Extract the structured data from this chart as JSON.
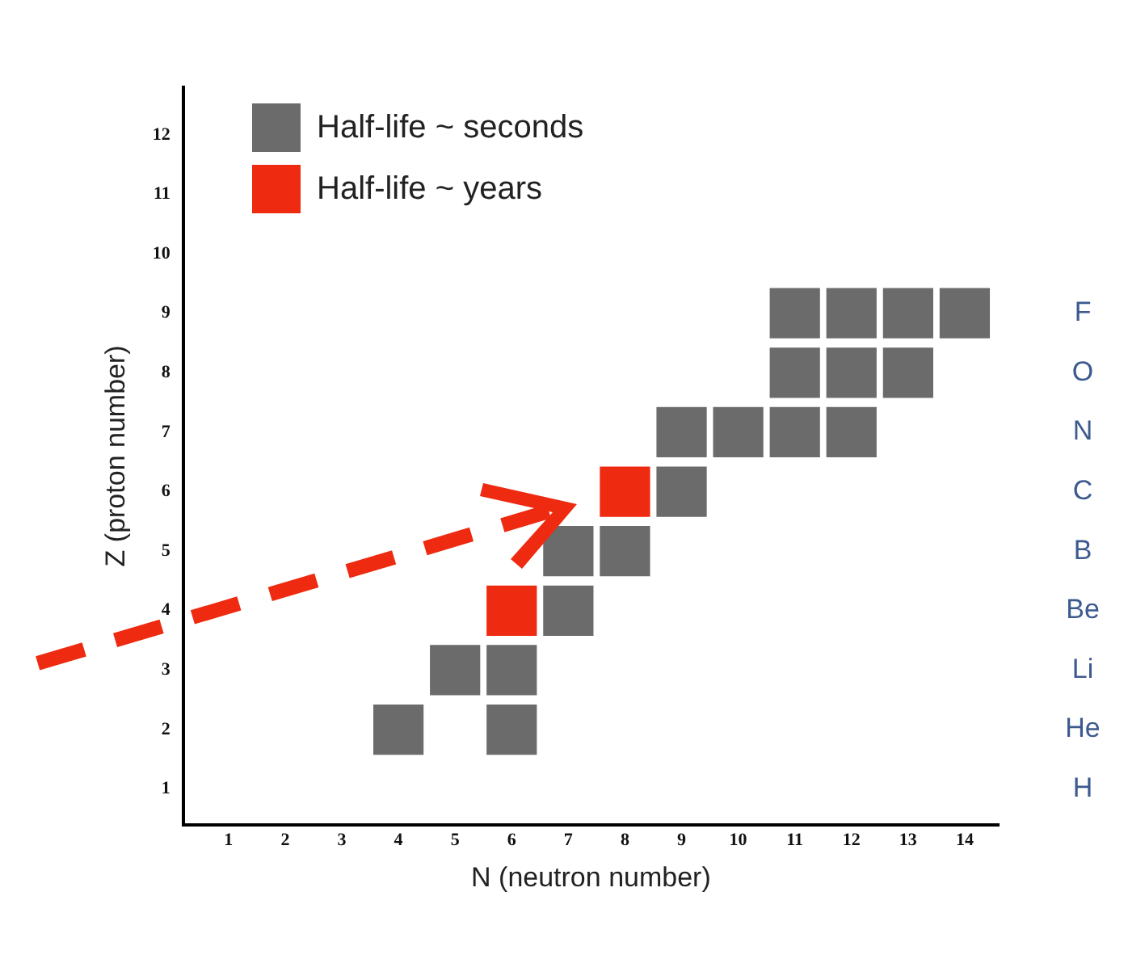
{
  "chart_data": {
    "type": "scatter",
    "xlabel": "N (neutron number)",
    "ylabel": "Z (proton number)",
    "marker": "square",
    "legend": "top left",
    "grid": false,
    "xlim": [
      0.2,
      14.6
    ],
    "xticks": [
      1,
      2,
      3,
      4,
      5,
      6,
      7,
      8,
      9,
      10,
      11,
      12,
      13,
      14
    ],
    "ylim": [
      0.4,
      12.8
    ],
    "yticks": [
      1,
      2,
      3,
      4,
      5,
      6,
      7,
      8,
      9,
      10,
      11,
      12
    ],
    "annotations": [
      "H",
      "He",
      "Li",
      "Be",
      "B",
      "C",
      "N",
      "O",
      "F"
    ],
    "series": [
      {
        "name": "Half-life ~ seconds",
        "color": "#6b6b6b",
        "x": [
          4,
          6,
          5,
          6,
          7,
          7,
          8,
          9,
          9,
          10,
          11,
          12,
          11,
          12,
          13,
          11,
          12,
          13,
          14
        ],
        "values": [
          2,
          2,
          3,
          3,
          4,
          5,
          5,
          6,
          7,
          7,
          7,
          7,
          8,
          8,
          8,
          9,
          9,
          9,
          9
        ]
      },
      {
        "name": "Half-life ~ years",
        "color": "#ee2a10",
        "x": [
          6,
          8
        ],
        "values": [
          4,
          6
        ]
      }
    ]
  }
}
